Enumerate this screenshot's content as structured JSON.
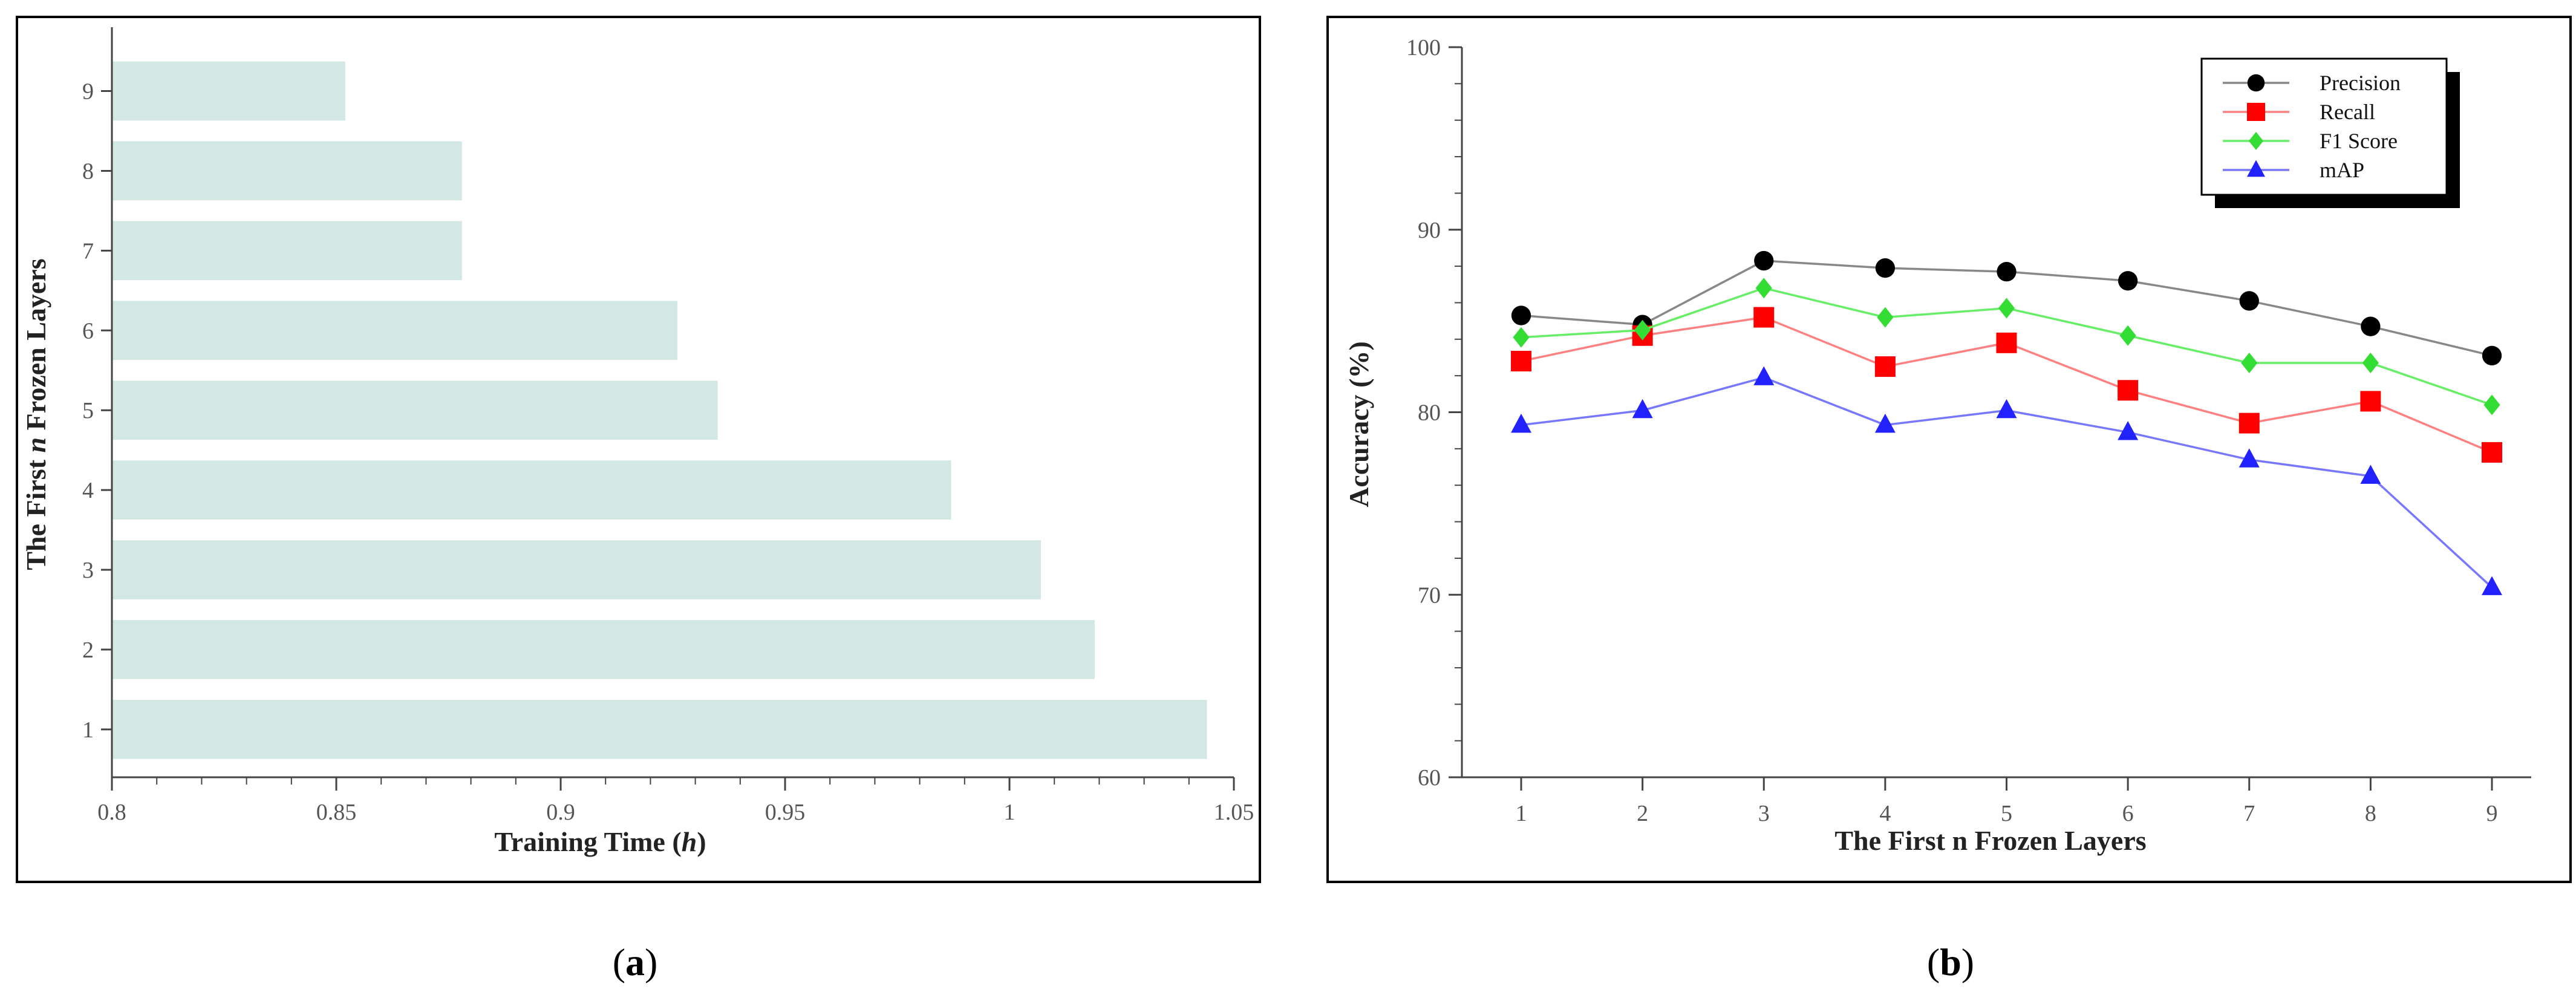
{
  "chart_data": [
    {
      "type": "bar",
      "orientation": "horizontal",
      "panel_label": "a",
      "title": "",
      "xlabel_prefix": "Training Time (",
      "xlabel_var": "h",
      "xlabel_suffix": ")",
      "ylabel_prefix": "The First ",
      "ylabel_var": "n",
      "ylabel_suffix": " Frozen Layers",
      "categories": [
        "1",
        "2",
        "3",
        "4",
        "5",
        "6",
        "7",
        "8",
        "9"
      ],
      "values": [
        1.044,
        1.019,
        1.007,
        0.987,
        0.935,
        0.926,
        0.878,
        0.878,
        0.852
      ],
      "xlim": [
        0.8,
        1.05
      ],
      "xticks": [
        "0.8",
        "0.85",
        "0.9",
        "0.95",
        "1",
        "1.05"
      ],
      "bar_color": "#d3e8e4"
    },
    {
      "type": "line",
      "panel_label": "b",
      "title": "",
      "xlabel": "The First n Frozen Layers",
      "ylabel": "Accuracy (%)",
      "x": [
        1,
        2,
        3,
        4,
        5,
        6,
        7,
        8,
        9
      ],
      "ylim": [
        60,
        100
      ],
      "yticks": [
        "60",
        "70",
        "80",
        "90",
        "100"
      ],
      "legend_position": "top-right",
      "series": [
        {
          "name": "Precision",
          "color": "#000000",
          "line_color": "#888888",
          "marker": "circle",
          "values": [
            85.3,
            84.8,
            88.3,
            87.9,
            87.7,
            87.2,
            86.1,
            84.7,
            83.1
          ]
        },
        {
          "name": "Recall",
          "color": "#ff0000",
          "line_color": "#ff8080",
          "marker": "square",
          "values": [
            82.8,
            84.2,
            85.2,
            82.5,
            83.8,
            81.2,
            79.4,
            80.6,
            77.8
          ]
        },
        {
          "name": "F1 Score",
          "color": "#33dd33",
          "line_color": "#66ee66",
          "marker": "diamond",
          "values": [
            84.1,
            84.5,
            86.8,
            85.2,
            85.7,
            84.2,
            82.7,
            82.7,
            80.4
          ]
        },
        {
          "name": "mAP",
          "color": "#2222ff",
          "line_color": "#7777ff",
          "marker": "triangle",
          "values": [
            79.3,
            80.1,
            81.9,
            79.3,
            80.1,
            78.9,
            77.4,
            76.5,
            70.4
          ]
        }
      ]
    }
  ]
}
